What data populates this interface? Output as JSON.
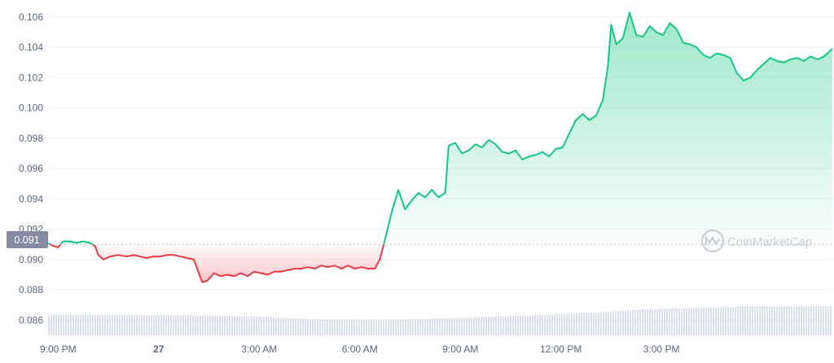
{
  "chart_data": {
    "type": "area",
    "y_ticks": [
      "0.106",
      "0.104",
      "0.102",
      "0.100",
      "0.098",
      "0.096",
      "0.094",
      "0.092",
      "0.090",
      "0.088",
      "0.086"
    ],
    "x_ticks": [
      "9:00 PM",
      "27",
      "3:00 AM",
      "6:00 AM",
      "9:00 AM",
      "12:00 PM",
      "3:00 PM"
    ],
    "ylim": [
      0.085,
      0.1068
    ],
    "baseline": 0.091,
    "current_label": "0.091",
    "watermark": "CoinMarketCap",
    "grid": true,
    "colors": {
      "up": "#16c784",
      "down": "#ea3943",
      "baseline": "#c4c9d1",
      "volume": "#cfd6e4",
      "label_bg": "#858ca2"
    },
    "time_range_hours": [
      -3.3,
      20.1
    ],
    "series": [
      {
        "values": [
          [
            -3.3,
            0.0911
          ],
          [
            -3.15,
            0.0909
          ],
          [
            -3.0,
            0.0908
          ],
          [
            -2.85,
            0.0912
          ],
          [
            -2.65,
            0.0912
          ],
          [
            -2.45,
            0.0911
          ],
          [
            -2.25,
            0.0912
          ],
          [
            -2.05,
            0.0911
          ],
          [
            -1.9,
            0.0909
          ],
          [
            -1.8,
            0.0903
          ],
          [
            -1.65,
            0.09
          ],
          [
            -1.45,
            0.0902
          ],
          [
            -1.2,
            0.0903
          ],
          [
            -0.95,
            0.0902
          ],
          [
            -0.75,
            0.0903
          ],
          [
            -0.55,
            0.0902
          ],
          [
            -0.35,
            0.0901
          ],
          [
            -0.15,
            0.0902
          ],
          [
            0.05,
            0.0902
          ],
          [
            0.25,
            0.0903
          ],
          [
            0.45,
            0.0903
          ],
          [
            0.65,
            0.0902
          ],
          [
            0.85,
            0.0901
          ],
          [
            1.05,
            0.09
          ],
          [
            1.3,
            0.0885
          ],
          [
            1.45,
            0.0886
          ],
          [
            1.65,
            0.0891
          ],
          [
            1.85,
            0.0889
          ],
          [
            2.05,
            0.089
          ],
          [
            2.25,
            0.0889
          ],
          [
            2.45,
            0.0891
          ],
          [
            2.65,
            0.0889
          ],
          [
            2.85,
            0.0892
          ],
          [
            3.05,
            0.0891
          ],
          [
            3.25,
            0.089
          ],
          [
            3.45,
            0.0892
          ],
          [
            3.65,
            0.0892
          ],
          [
            3.85,
            0.0893
          ],
          [
            4.05,
            0.0894
          ],
          [
            4.25,
            0.0894
          ],
          [
            4.45,
            0.0895
          ],
          [
            4.65,
            0.0894
          ],
          [
            4.85,
            0.0896
          ],
          [
            5.05,
            0.0895
          ],
          [
            5.25,
            0.0896
          ],
          [
            5.45,
            0.0894
          ],
          [
            5.65,
            0.0896
          ],
          [
            5.85,
            0.0894
          ],
          [
            6.05,
            0.0895
          ],
          [
            6.25,
            0.0894
          ],
          [
            6.45,
            0.0894
          ],
          [
            6.6,
            0.09
          ],
          [
            6.75,
            0.0913
          ],
          [
            6.95,
            0.0931
          ],
          [
            7.15,
            0.0946
          ],
          [
            7.35,
            0.0933
          ],
          [
            7.55,
            0.0939
          ],
          [
            7.75,
            0.0944
          ],
          [
            7.95,
            0.0941
          ],
          [
            8.15,
            0.0946
          ],
          [
            8.35,
            0.0941
          ],
          [
            8.55,
            0.0944
          ],
          [
            8.65,
            0.0975
          ],
          [
            8.85,
            0.0977
          ],
          [
            9.05,
            0.097
          ],
          [
            9.25,
            0.0972
          ],
          [
            9.45,
            0.0976
          ],
          [
            9.65,
            0.0974
          ],
          [
            9.85,
            0.0979
          ],
          [
            10.05,
            0.0976
          ],
          [
            10.25,
            0.0971
          ],
          [
            10.45,
            0.097
          ],
          [
            10.65,
            0.0972
          ],
          [
            10.85,
            0.0966
          ],
          [
            11.05,
            0.0968
          ],
          [
            11.25,
            0.0969
          ],
          [
            11.45,
            0.0971
          ],
          [
            11.65,
            0.0968
          ],
          [
            11.85,
            0.0973
          ],
          [
            12.05,
            0.0974
          ],
          [
            12.25,
            0.0983
          ],
          [
            12.45,
            0.0992
          ],
          [
            12.65,
            0.0996
          ],
          [
            12.85,
            0.0992
          ],
          [
            13.05,
            0.0995
          ],
          [
            13.25,
            0.1005
          ],
          [
            13.4,
            0.1027
          ],
          [
            13.5,
            0.1055
          ],
          [
            13.65,
            0.1042
          ],
          [
            13.85,
            0.1046
          ],
          [
            14.05,
            0.1063
          ],
          [
            14.25,
            0.1048
          ],
          [
            14.45,
            0.1047
          ],
          [
            14.65,
            0.1054
          ],
          [
            14.85,
            0.105
          ],
          [
            15.05,
            0.1048
          ],
          [
            15.25,
            0.1056
          ],
          [
            15.45,
            0.1052
          ],
          [
            15.65,
            0.1043
          ],
          [
            15.85,
            0.1042
          ],
          [
            16.05,
            0.104
          ],
          [
            16.25,
            0.1035
          ],
          [
            16.45,
            0.1033
          ],
          [
            16.65,
            0.1036
          ],
          [
            16.85,
            0.1035
          ],
          [
            17.05,
            0.1033
          ],
          [
            17.25,
            0.1023
          ],
          [
            17.45,
            0.1018
          ],
          [
            17.65,
            0.102
          ],
          [
            17.85,
            0.1025
          ],
          [
            18.05,
            0.1029
          ],
          [
            18.25,
            0.1033
          ],
          [
            18.45,
            0.1031
          ],
          [
            18.65,
            0.103
          ],
          [
            18.85,
            0.1032
          ],
          [
            19.05,
            0.1033
          ],
          [
            19.25,
            0.1031
          ],
          [
            19.45,
            0.1034
          ],
          [
            19.65,
            0.1032
          ],
          [
            19.85,
            0.1034
          ],
          [
            20.1,
            0.1039
          ]
        ]
      }
    ],
    "volume_relative": [
      [
        -3.3,
        0.8
      ],
      [
        0,
        0.78
      ],
      [
        1.5,
        0.76
      ],
      [
        3.0,
        0.72
      ],
      [
        4.5,
        0.62
      ],
      [
        6.5,
        0.58
      ],
      [
        8.0,
        0.63
      ],
      [
        9.5,
        0.7
      ],
      [
        11.0,
        0.76
      ],
      [
        12.5,
        0.84
      ],
      [
        13.5,
        0.92
      ],
      [
        14.5,
        1.0
      ],
      [
        16.0,
        1.05
      ],
      [
        17.5,
        1.1
      ],
      [
        20.1,
        1.12
      ]
    ]
  }
}
